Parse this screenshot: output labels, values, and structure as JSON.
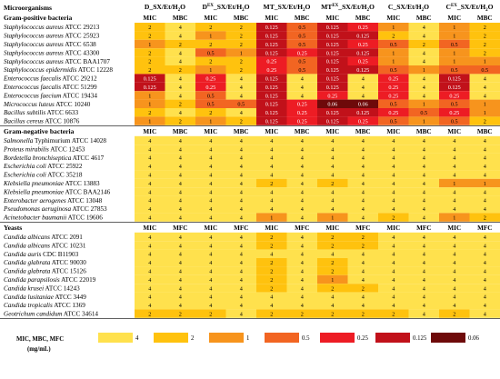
{
  "chart_data": {
    "type": "heatmap",
    "header_label": "Microorganisms",
    "compounds": [
      {
        "main": "D_SX/Et/H",
        "sub1": "2",
        "mid": "",
        "sub2": "O"
      },
      {
        "main": "D",
        "sup": "EX",
        "rest": "_SX/Et/H",
        "sub2": "O"
      },
      {
        "main": "MT_SX/Et/H",
        "sub2": "O"
      },
      {
        "main": "MT",
        "sup": "EX",
        "rest": "_SX/Et/H",
        "sub2": "O"
      },
      {
        "main": "C_SX/Et/H",
        "sub2": "O"
      },
      {
        "main": "C",
        "sup": "EX",
        "rest": "_SX/Et/H",
        "sub2": "O"
      }
    ],
    "sections": [
      {
        "title": "Gram-positive bacteria",
        "measures": [
          "MIC",
          "MBC"
        ],
        "rows": [
          {
            "name": "Staphylococcus aureus",
            "strain": "ATCC 29213",
            "values": [
              2,
              4,
              2,
              2,
              0.125,
              0.5,
              0.125,
              0.25,
              1,
              4,
              1,
              2
            ]
          },
          {
            "name": "Staphylococcus aureus",
            "strain": "ATCC 25923",
            "values": [
              2,
              4,
              1,
              2,
              0.125,
              0.5,
              0.125,
              0.125,
              2,
              4,
              1,
              2
            ]
          },
          {
            "name": "Staphylococcus aureus",
            "strain": "ATCC 6538",
            "values": [
              1,
              2,
              2,
              2,
              0.125,
              0.5,
              0.125,
              0.25,
              0.5,
              2,
              0.5,
              2
            ]
          },
          {
            "name": "Staphylococcus aureus",
            "strain": "ATCC 43300",
            "values": [
              2,
              4,
              0.5,
              1,
              0.125,
              0.25,
              0.125,
              0.125,
              1,
              4,
              1,
              2
            ]
          },
          {
            "name": "Staphylococcus aureus",
            "strain": "ATCC BAA1707",
            "values": [
              2,
              4,
              2,
              2,
              0.25,
              0.5,
              0.125,
              0.25,
              1,
              4,
              1,
              1
            ]
          },
          {
            "name": "Staphylococcus epidermidis",
            "strain": "ATCC 12228",
            "values": [
              2,
              2,
              1,
              2,
              0.25,
              0.5,
              0.125,
              0.125,
              0.5,
              1,
              0.5,
              0.5
            ]
          },
          {
            "name": "Enterococcus faecalis",
            "strain": "ATCC 29212",
            "values": [
              0.125,
              4,
              0.25,
              4,
              0.125,
              4,
              0.125,
              4,
              0.25,
              4,
              0.125,
              4
            ]
          },
          {
            "name": "Enterococcus faecalis",
            "strain": "ATCC 51299",
            "values": [
              0.125,
              4,
              0.25,
              4,
              0.125,
              4,
              0.125,
              4,
              0.25,
              4,
              0.125,
              4
            ]
          },
          {
            "name": "Enterococcus faecium",
            "strain": "ATCC 19434",
            "values": [
              1,
              4,
              0.5,
              4,
              0.125,
              4,
              0.25,
              4,
              0.25,
              4,
              0.25,
              4
            ]
          },
          {
            "name": "Micrococcus luteus",
            "strain": "ATCC 10240",
            "values": [
              1,
              2,
              0.5,
              0.5,
              0.125,
              0.25,
              0.06,
              0.06,
              0.5,
              1,
              0.5,
              1
            ]
          },
          {
            "name": "Bacillus subtilis",
            "strain": "ATCC 6633",
            "values": [
              2,
              4,
              2,
              4,
              0.125,
              0.25,
              0.125,
              0.125,
              0.25,
              0.5,
              0.25,
              1
            ]
          },
          {
            "name": "Bacillus cereus",
            "strain": "ATCC 10876",
            "values": [
              1,
              2,
              1,
              2,
              0.125,
              0.25,
              0.125,
              0.25,
              0.5,
              1,
              0.5,
              2
            ]
          }
        ]
      },
      {
        "title": "Gram-negative bacteria",
        "measures": [
          "MIC",
          "MBC"
        ],
        "rows": [
          {
            "name": "Salmonella",
            "extra": " Typhimurium",
            "strain": "ATCC 14028",
            "values": [
              4,
              4,
              4,
              4,
              4,
              4,
              4,
              4,
              4,
              4,
              4,
              4
            ]
          },
          {
            "name": "Proteus mirabilis",
            "strain": "ATCC 12453",
            "values": [
              4,
              4,
              4,
              4,
              4,
              4,
              4,
              4,
              4,
              4,
              4,
              4
            ]
          },
          {
            "name": "Bordetella bronchiseptica",
            "strain": "ATCC 4617",
            "values": [
              4,
              4,
              4,
              4,
              4,
              4,
              4,
              4,
              4,
              4,
              4,
              4
            ]
          },
          {
            "name": "Escherichia coli",
            "strain": "ATCC 25922",
            "values": [
              4,
              4,
              4,
              4,
              4,
              4,
              4,
              4,
              4,
              4,
              4,
              4
            ]
          },
          {
            "name": "Escherichia coli",
            "strain": "ATCC 35218",
            "values": [
              4,
              4,
              4,
              4,
              4,
              4,
              4,
              4,
              4,
              4,
              4,
              4
            ]
          },
          {
            "name": "Klebsiella pneumoniae",
            "strain": "ATCC 13883",
            "values": [
              4,
              4,
              4,
              4,
              2,
              4,
              2,
              4,
              4,
              4,
              1,
              1
            ]
          },
          {
            "name": "Klebsiella pneumoniae",
            "strain": "ATCC BAA2146",
            "values": [
              4,
              4,
              4,
              4,
              4,
              4,
              4,
              4,
              4,
              4,
              4,
              4
            ]
          },
          {
            "name": "Enterobacter aerogenes",
            "strain": "ATCC 13048",
            "values": [
              4,
              4,
              4,
              4,
              4,
              4,
              4,
              4,
              4,
              4,
              4,
              4
            ]
          },
          {
            "name": "Pseudomonas aeruginosa",
            "strain": "ATCC 27853",
            "values": [
              4,
              4,
              4,
              4,
              4,
              4,
              4,
              4,
              4,
              4,
              4,
              4
            ]
          },
          {
            "name": "Acinetobacter baumanii",
            "strain": "ATCC 19606",
            "values": [
              4,
              4,
              4,
              4,
              1,
              4,
              1,
              4,
              2,
              4,
              1,
              2
            ]
          }
        ]
      },
      {
        "title": "Yeasts",
        "measures": [
          "MIC",
          "MFC"
        ],
        "rows": [
          {
            "name": "Candida albicans",
            "strain": "ATCC 2091",
            "values": [
              4,
              4,
              4,
              4,
              2,
              4,
              2,
              2,
              4,
              4,
              4,
              4
            ]
          },
          {
            "name": "Candida albicans",
            "strain": "ATCC 10231",
            "values": [
              4,
              4,
              4,
              4,
              2,
              4,
              2,
              2,
              4,
              4,
              4,
              4
            ]
          },
          {
            "name": "Candida auris",
            "strain": "CDC B11903",
            "values": [
              4,
              4,
              4,
              4,
              4,
              4,
              4,
              4,
              4,
              4,
              4,
              4
            ]
          },
          {
            "name": "Candida glabrata",
            "strain": "ATCC 90030",
            "values": [
              4,
              4,
              4,
              4,
              2,
              4,
              2,
              4,
              4,
              4,
              4,
              4
            ]
          },
          {
            "name": "Candida glabrata",
            "strain": "ATCC 15126",
            "values": [
              4,
              4,
              4,
              4,
              2,
              4,
              2,
              4,
              4,
              4,
              4,
              4
            ]
          },
          {
            "name": "Candida parapsilosis",
            "strain": "ATCC 22019",
            "values": [
              4,
              4,
              4,
              4,
              2,
              4,
              1,
              4,
              4,
              4,
              4,
              4
            ]
          },
          {
            "name": "Candida krusei",
            "strain": "ATCC 14243",
            "values": [
              4,
              4,
              4,
              4,
              2,
              4,
              2,
              2,
              4,
              4,
              4,
              4
            ]
          },
          {
            "name": "Candida lusitaniae",
            "strain": "ATCC 3449",
            "values": [
              4,
              4,
              4,
              4,
              4,
              4,
              4,
              4,
              4,
              4,
              4,
              4
            ]
          },
          {
            "name": "Candida tropicalis",
            "strain": "ATCC 1369",
            "values": [
              4,
              4,
              4,
              4,
              4,
              4,
              4,
              4,
              4,
              4,
              4,
              4
            ]
          },
          {
            "name": "Geotrichum candidum",
            "strain": "ATCC 34614",
            "values": [
              2,
              2,
              2,
              4,
              2,
              2,
              2,
              2,
              2,
              4,
              2,
              4
            ]
          }
        ]
      }
    ],
    "legend": {
      "title_lines": [
        "MIC, MBC, MFC",
        "(mg/mL)"
      ],
      "levels": [
        {
          "value": 4,
          "label": "4",
          "color": "#FFE14D"
        },
        {
          "value": 2,
          "label": "2",
          "color": "#FFC20E"
        },
        {
          "value": 1,
          "label": "1",
          "color": "#F7941D"
        },
        {
          "value": 0.5,
          "label": "0.5",
          "color": "#F26522"
        },
        {
          "value": 0.25,
          "label": "0.25",
          "color": "#ED1C24"
        },
        {
          "value": 0.125,
          "label": "0.125",
          "color": "#C1111A"
        },
        {
          "value": 0.06,
          "label": "0.06",
          "color": "#6E0A0A"
        }
      ]
    }
  }
}
